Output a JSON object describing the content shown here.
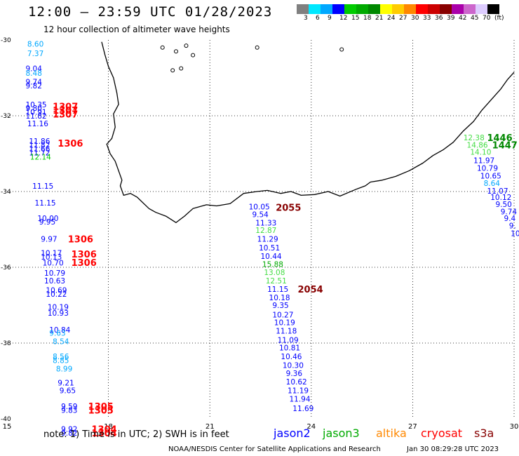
{
  "header": {
    "title": "12:00 – 23:59 UTC 01/28/2023",
    "subtitle": "12 hour collection of altimeter wave heights"
  },
  "legend": {
    "colors": [
      "#808080",
      "#00e8ff",
      "#00a8ff",
      "#0000ff",
      "#00cc00",
      "#00aa00",
      "#008800",
      "#ffff00",
      "#ffcc00",
      "#ff8800",
      "#ff0000",
      "#cc0000",
      "#880000",
      "#aa00aa",
      "#cc66cc",
      "#ddccff",
      "#000000"
    ],
    "labels": [
      "3",
      "6",
      "9",
      "12",
      "15",
      "18",
      "21",
      "24",
      "27",
      "30",
      "33",
      "36",
      "39",
      "42",
      "45",
      "70",
      "(ft)"
    ]
  },
  "axes": {
    "lon_labels": [
      "15",
      "18",
      "21",
      "24",
      "27",
      "30"
    ],
    "lat_labels": [
      "-30",
      "-32",
      "-34",
      "-36",
      "-38",
      "-40"
    ]
  },
  "observations": [
    {
      "t": "8.60",
      "c": "#00a8ff",
      "lon": 15.6,
      "lat": -30.1
    },
    {
      "t": "7.37",
      "c": "#00a8ff",
      "lon": 15.6,
      "lat": -30.35
    },
    {
      "t": "9.04",
      "c": "#0000ff",
      "lon": 15.55,
      "lat": -30.75
    },
    {
      "t": "8.48",
      "c": "#00a8ff",
      "lon": 15.55,
      "lat": -30.87
    },
    {
      "t": "9.74",
      "c": "#0000ff",
      "lon": 15.55,
      "lat": -31.1
    },
    {
      "t": "9.82",
      "c": "#0000ff",
      "lon": 15.55,
      "lat": -31.2
    },
    {
      "t": "10.35",
      "c": "#0000ff",
      "lon": 15.55,
      "lat": -31.7
    },
    {
      "t": "9.80",
      "c": "#0000ff",
      "lon": 15.55,
      "lat": -31.8
    },
    {
      "t": "10.91",
      "c": "#0000ff",
      "lon": 15.55,
      "lat": -31.9
    },
    {
      "t": "11.82",
      "c": "#0000ff",
      "lon": 15.55,
      "lat": -32.0
    },
    {
      "t": "11.16",
      "c": "#0000ff",
      "lon": 15.6,
      "lat": -32.2
    },
    {
      "t": "11.86",
      "c": "#0000ff",
      "lon": 15.65,
      "lat": -32.67
    },
    {
      "t": "11.82",
      "c": "#0000ff",
      "lon": 15.65,
      "lat": -32.77
    },
    {
      "t": "11.66",
      "c": "#0000ff",
      "lon": 15.65,
      "lat": -32.87
    },
    {
      "t": "11.72",
      "c": "#0000ff",
      "lon": 15.65,
      "lat": -32.97
    },
    {
      "t": "12.14",
      "c": "#00cc00",
      "lon": 15.68,
      "lat": -33.08
    },
    {
      "t": "11.15",
      "c": "#0000ff",
      "lon": 15.75,
      "lat": -33.85
    },
    {
      "t": "11.15",
      "c": "#0000ff",
      "lon": 15.82,
      "lat": -34.3
    },
    {
      "t": "10.00",
      "c": "#0000ff",
      "lon": 15.9,
      "lat": -34.7
    },
    {
      "t": "9.95",
      "c": "#0000ff",
      "lon": 15.95,
      "lat": -34.8
    },
    {
      "t": "9.97",
      "c": "#0000ff",
      "lon": 16.0,
      "lat": -35.25
    },
    {
      "t": "10.17",
      "c": "#0000ff",
      "lon": 16.0,
      "lat": -35.62
    },
    {
      "t": "10.13",
      "c": "#0000ff",
      "lon": 16.0,
      "lat": -35.72
    },
    {
      "t": "10.70",
      "c": "#0000ff",
      "lon": 16.05,
      "lat": -35.88
    },
    {
      "t": "10.79",
      "c": "#0000ff",
      "lon": 16.1,
      "lat": -36.15
    },
    {
      "t": "10.63",
      "c": "#0000ff",
      "lon": 16.1,
      "lat": -36.35
    },
    {
      "t": "10.69",
      "c": "#0000ff",
      "lon": 16.15,
      "lat": -36.6
    },
    {
      "t": "10.22",
      "c": "#0000ff",
      "lon": 16.15,
      "lat": -36.7
    },
    {
      "t": "10.19",
      "c": "#0000ff",
      "lon": 16.2,
      "lat": -37.05
    },
    {
      "t": "10.93",
      "c": "#0000ff",
      "lon": 16.2,
      "lat": -37.2
    },
    {
      "t": "10.84",
      "c": "#0000ff",
      "lon": 16.25,
      "lat": -37.65
    },
    {
      "t": "9.63",
      "c": "#00a8ff",
      "lon": 16.25,
      "lat": -37.73
    },
    {
      "t": "8.54",
      "c": "#00a8ff",
      "lon": 16.35,
      "lat": -37.95
    },
    {
      "t": "8.56",
      "c": "#00a8ff",
      "lon": 16.35,
      "lat": -38.35
    },
    {
      "t": "8.85",
      "c": "#00a8ff",
      "lon": 16.35,
      "lat": -38.45
    },
    {
      "t": "8.99",
      "c": "#00a8ff",
      "lon": 16.45,
      "lat": -38.68
    },
    {
      "t": "9.21",
      "c": "#0000ff",
      "lon": 16.5,
      "lat": -39.05
    },
    {
      "t": "9.65",
      "c": "#0000ff",
      "lon": 16.55,
      "lat": -39.25
    },
    {
      "t": "9.59",
      "c": "#0000ff",
      "lon": 16.6,
      "lat": -39.67
    },
    {
      "t": "9.83",
      "c": "#0000ff",
      "lon": 16.6,
      "lat": -39.77
    },
    {
      "t": "9.92",
      "c": "#0000ff",
      "lon": 16.6,
      "lat": -40.27
    },
    {
      "t": "9.82",
      "c": "#0000ff",
      "lon": 16.6,
      "lat": -40.37
    },
    {
      "t": "10.05",
      "c": "#0000ff",
      "lon": 22.15,
      "lat": -34.4
    },
    {
      "t": "9.54",
      "c": "#0000ff",
      "lon": 22.25,
      "lat": -34.6
    },
    {
      "t": "11.33",
      "c": "#0000ff",
      "lon": 22.35,
      "lat": -34.82
    },
    {
      "t": "12.87",
      "c": "#44dd44",
      "lon": 22.35,
      "lat": -35.02
    },
    {
      "t": "11.29",
      "c": "#0000ff",
      "lon": 22.4,
      "lat": -35.25
    },
    {
      "t": "10.51",
      "c": "#0000ff",
      "lon": 22.45,
      "lat": -35.48
    },
    {
      "t": "10.44",
      "c": "#0000ff",
      "lon": 22.5,
      "lat": -35.7
    },
    {
      "t": "15.88",
      "c": "#00aa00",
      "lon": 22.55,
      "lat": -35.92
    },
    {
      "t": "13.08",
      "c": "#44dd44",
      "lon": 22.6,
      "lat": -36.13
    },
    {
      "t": "12.51",
      "c": "#44dd44",
      "lon": 22.65,
      "lat": -36.35
    },
    {
      "t": "11.15",
      "c": "#0000ff",
      "lon": 22.7,
      "lat": -36.57
    },
    {
      "t": "10.18",
      "c": "#0000ff",
      "lon": 22.75,
      "lat": -36.8
    },
    {
      "t": "9.35",
      "c": "#0000ff",
      "lon": 22.85,
      "lat": -37.0
    },
    {
      "t": "10.27",
      "c": "#0000ff",
      "lon": 22.85,
      "lat": -37.25
    },
    {
      "t": "10.19",
      "c": "#0000ff",
      "lon": 22.9,
      "lat": -37.45
    },
    {
      "t": "11.18",
      "c": "#0000ff",
      "lon": 22.95,
      "lat": -37.68
    },
    {
      "t": "11.09",
      "c": "#0000ff",
      "lon": 23.0,
      "lat": -37.92
    },
    {
      "t": "10.81",
      "c": "#0000ff",
      "lon": 23.05,
      "lat": -38.12
    },
    {
      "t": "10.46",
      "c": "#0000ff",
      "lon": 23.1,
      "lat": -38.35
    },
    {
      "t": "10.30",
      "c": "#0000ff",
      "lon": 23.15,
      "lat": -38.58
    },
    {
      "t": "9.36",
      "c": "#0000ff",
      "lon": 23.25,
      "lat": -38.8
    },
    {
      "t": "10.62",
      "c": "#0000ff",
      "lon": 23.25,
      "lat": -39.02
    },
    {
      "t": "11.19",
      "c": "#0000ff",
      "lon": 23.3,
      "lat": -39.25
    },
    {
      "t": "11.94",
      "c": "#0000ff",
      "lon": 23.35,
      "lat": -39.47
    },
    {
      "t": "11.69",
      "c": "#0000ff",
      "lon": 23.45,
      "lat": -39.72
    },
    {
      "t": "12.38",
      "c": "#44dd44",
      "lon": 28.5,
      "lat": -32.57
    },
    {
      "t": "14.86",
      "c": "#44dd44",
      "lon": 28.6,
      "lat": -32.77
    },
    {
      "t": "14.10",
      "c": "#44dd44",
      "lon": 28.7,
      "lat": -32.95
    },
    {
      "t": "11.97",
      "c": "#0000ff",
      "lon": 28.8,
      "lat": -33.18
    },
    {
      "t": "10.79",
      "c": "#0000ff",
      "lon": 28.9,
      "lat": -33.38
    },
    {
      "t": "10.65",
      "c": "#0000ff",
      "lon": 29.0,
      "lat": -33.58
    },
    {
      "t": "8.64",
      "c": "#00a8ff",
      "lon": 29.1,
      "lat": -33.78
    },
    {
      "t": "11.07",
      "c": "#0000ff",
      "lon": 29.2,
      "lat": -33.98
    },
    {
      "t": "10.12",
      "c": "#0000ff",
      "lon": 29.3,
      "lat": -34.15
    },
    {
      "t": "9.50",
      "c": "#0000ff",
      "lon": 29.45,
      "lat": -34.33
    },
    {
      "t": "9.74",
      "c": "#0000ff",
      "lon": 29.6,
      "lat": -34.53
    },
    {
      "t": "9.4",
      "c": "#0000ff",
      "lon": 29.7,
      "lat": -34.7
    },
    {
      "t": "9.",
      "c": "#0000ff",
      "lon": 29.85,
      "lat": -34.9
    },
    {
      "t": "10",
      "c": "#0000ff",
      "lon": 29.9,
      "lat": -35.1
    }
  ],
  "times": [
    {
      "t": "1307",
      "c": "#ff0000",
      "lon": 16.35,
      "lat": -31.75
    },
    {
      "t": "1307",
      "c": "#ff0000",
      "lon": 16.35,
      "lat": -31.85
    },
    {
      "t": "1307",
      "c": "#ff0000",
      "lon": 16.35,
      "lat": -31.95
    },
    {
      "t": "1306",
      "c": "#ff0000",
      "lon": 16.5,
      "lat": -32.72
    },
    {
      "t": "1306",
      "c": "#ff0000",
      "lon": 16.8,
      "lat": -35.25
    },
    {
      "t": "1306",
      "c": "#ff0000",
      "lon": 16.9,
      "lat": -35.65
    },
    {
      "t": "1306",
      "c": "#ff0000",
      "lon": 16.9,
      "lat": -35.87
    },
    {
      "t": "1305",
      "c": "#ff0000",
      "lon": 17.4,
      "lat": -39.67
    },
    {
      "t": "1305",
      "c": "#ff0000",
      "lon": 17.4,
      "lat": -39.77
    },
    {
      "t": "1304",
      "c": "#ff0000",
      "lon": 17.5,
      "lat": -40.27
    },
    {
      "t": "1304",
      "c": "#ff0000",
      "lon": 17.5,
      "lat": -40.37
    },
    {
      "t": "2055",
      "c": "#880000",
      "lon": 22.95,
      "lat": -34.42
    },
    {
      "t": "2054",
      "c": "#880000",
      "lon": 23.6,
      "lat": -36.57
    },
    {
      "t": "1446",
      "c": "#008800",
      "lon": 29.2,
      "lat": -32.57
    },
    {
      "t": "1447",
      "c": "#008800",
      "lon": 29.35,
      "lat": -32.77
    }
  ],
  "footer": {
    "note": "note:  1) Time is in UTC;  2) SWH is in feet",
    "satellites": [
      {
        "name": "jason2",
        "color": "#0000ff"
      },
      {
        "name": "jason3",
        "color": "#00aa00"
      },
      {
        "name": "altika",
        "color": "#ff8800"
      },
      {
        "name": "cryosat",
        "color": "#ff0000"
      },
      {
        "name": "s3a",
        "color": "#880000"
      }
    ],
    "credit": "NOAA/NESDIS Center for Satellite Applications and Research",
    "timestamp": "Jan 30 08:29:28 UTC 2023"
  }
}
